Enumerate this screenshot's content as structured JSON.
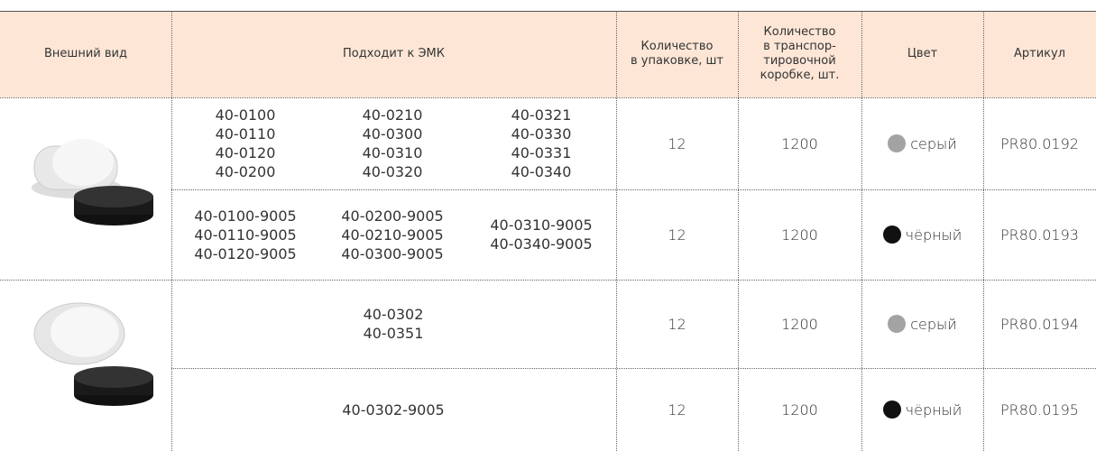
{
  "table": {
    "header": [
      [
        "Внешний вид"
      ],
      [
        "Подходит к ЭМК"
      ],
      [
        "Количество",
        "в упаковке, шт"
      ],
      [
        "Количество",
        "в транспор-",
        "тировочной",
        "коробке, шт."
      ],
      [
        "Цвет"
      ],
      [
        "Артикул"
      ]
    ],
    "rows": [
      {
        "models": [
          [
            "40-0100",
            "40-0110",
            "40-0120",
            "40-0200"
          ],
          [
            "40-0210",
            "40-0300",
            "40-0310",
            "40-0320"
          ],
          [
            "40-0321",
            "40-0330",
            "40-0331",
            "40-0340"
          ]
        ],
        "pack": 12,
        "box": 1200,
        "color": "серый",
        "dot": "#a3a3a3",
        "article": "PR80.0192"
      },
      {
        "models": [
          [
            "40-0100-9005",
            "40-0110-9005",
            "40-0120-9005"
          ],
          [
            "40-0200-9005",
            "40-0210-9005",
            "40-0300-9005"
          ],
          [
            "40-0310-9005",
            "40-0340-9005"
          ]
        ],
        "pack": 12,
        "box": 1200,
        "color": "чёрный",
        "dot": "#111111",
        "article": "PR80.0193"
      },
      {
        "models": [
          [
            "40-0302",
            "40-0351"
          ]
        ],
        "pack": 12,
        "box": 1200,
        "color": "серый",
        "dot": "#a3a3a3",
        "article": "PR80.0194"
      },
      {
        "models": [
          [
            "40-0302-9005"
          ]
        ],
        "pack": 12,
        "box": 1200,
        "color": "чёрный",
        "dot": "#111111",
        "article": "PR80.0195"
      }
    ]
  }
}
